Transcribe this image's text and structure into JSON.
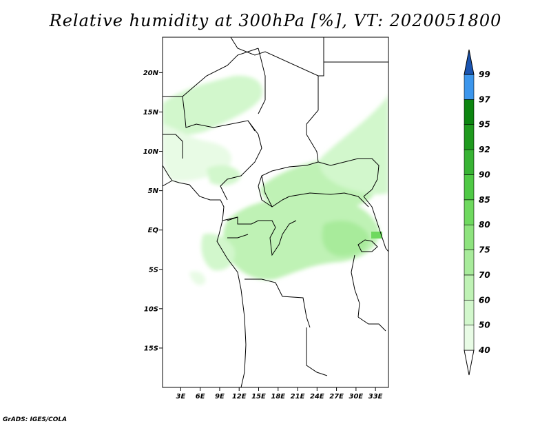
{
  "title": "Relative humidity at 300hPa [%], VT: 2020051800",
  "credit": "GrADS: IGES/COLA",
  "lat_ticks": [
    {
      "label": "20N",
      "lat": 20
    },
    {
      "label": "15N",
      "lat": 15
    },
    {
      "label": "10N",
      "lat": 10
    },
    {
      "label": "5N",
      "lat": 5
    },
    {
      "label": "EQ",
      "lat": 0
    },
    {
      "label": "5S",
      "lat": -5
    },
    {
      "label": "10S",
      "lat": -10
    },
    {
      "label": "15S",
      "lat": -15
    }
  ],
  "lon_ticks": [
    {
      "label": "3E",
      "lon": 3
    },
    {
      "label": "6E",
      "lon": 6
    },
    {
      "label": "9E",
      "lon": 9
    },
    {
      "label": "12E",
      "lon": 12
    },
    {
      "label": "15E",
      "lon": 15
    },
    {
      "label": "18E",
      "lon": 18
    },
    {
      "label": "21E",
      "lon": 21
    },
    {
      "label": "24E",
      "lon": 24
    },
    {
      "label": "27E",
      "lon": 27
    },
    {
      "label": "30E",
      "lon": 30
    },
    {
      "label": "33E",
      "lon": 33
    }
  ],
  "colorbar": {
    "levels": [
      "40",
      "50",
      "60",
      "70",
      "75",
      "80",
      "85",
      "90",
      "92",
      "95",
      "97",
      "99"
    ],
    "colors": [
      "#e8fbe5",
      "#d2f7cc",
      "#bff2b5",
      "#a8eb9b",
      "#8ee37e",
      "#6fd95f",
      "#4fc945",
      "#38b334",
      "#1f9a1e",
      "#0c8510",
      "#3c96ec",
      "#1f6ed6",
      "#1a54b0"
    ]
  }
}
